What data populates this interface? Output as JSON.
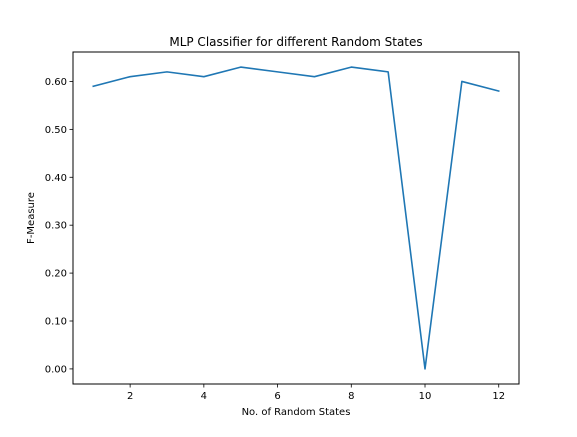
{
  "chart_data": {
    "type": "line",
    "title": "MLP Classifier for different Random States",
    "xlabel": "No. of Random States",
    "ylabel": "F-Measure",
    "xlim": [
      0.45,
      12.55
    ],
    "ylim": [
      -0.0315,
      0.6615
    ],
    "xticks": [
      2,
      4,
      6,
      8,
      10,
      12
    ],
    "xtick_labels": [
      "2",
      "4",
      "6",
      "8",
      "10",
      "12"
    ],
    "yticks": [
      0.0,
      0.1,
      0.2,
      0.3,
      0.4,
      0.5,
      0.6
    ],
    "ytick_labels": [
      "0.00",
      "0.10",
      "0.20",
      "0.30",
      "0.40",
      "0.50",
      "0.60"
    ],
    "grid": false,
    "series": [
      {
        "color": "#1f77b4",
        "x": [
          1,
          2,
          3,
          4,
          5,
          6,
          7,
          8,
          9,
          10,
          11,
          12
        ],
        "y": [
          0.59,
          0.61,
          0.62,
          0.61,
          0.63,
          0.62,
          0.61,
          0.63,
          0.62,
          0.0,
          0.6,
          0.58
        ]
      }
    ]
  }
}
